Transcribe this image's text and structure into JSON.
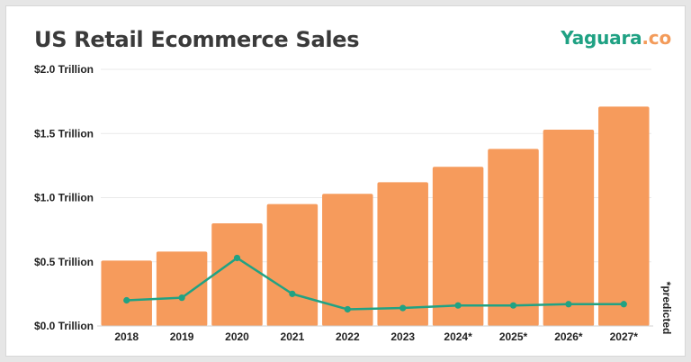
{
  "header": {
    "title": "US Retail Ecommerce Sales",
    "brand_name": "Yaguara",
    "brand_tld": ".co"
  },
  "colors": {
    "bar": "#f69b5c",
    "line": "#21a283",
    "grid": "#e9e9e9",
    "text": "#222222",
    "brand_green": "#1fa183",
    "brand_orange": "#f39b5a"
  },
  "chart_data": {
    "type": "bar",
    "title": "US Retail Ecommerce Sales",
    "categories": [
      "2018",
      "2019",
      "2020",
      "2021",
      "2022",
      "2023",
      "2024*",
      "2025*",
      "2026*",
      "2027*"
    ],
    "ylim": [
      0,
      2.0
    ],
    "yticks": [
      0,
      0.5,
      1.0,
      1.5,
      2.0
    ],
    "ytick_labels": [
      "$0.0 Trillion",
      "$0.5 Trillion",
      "$1.0 Trillion",
      "$1.5 Trillion",
      "$2.0 Trillion"
    ],
    "grid": true,
    "series": [
      {
        "type": "bar",
        "values": [
          0.51,
          0.58,
          0.8,
          0.95,
          1.03,
          1.12,
          1.24,
          1.38,
          1.53,
          1.71
        ]
      },
      {
        "type": "line",
        "values": [
          0.2,
          0.22,
          0.53,
          0.25,
          0.13,
          0.14,
          0.16,
          0.16,
          0.17,
          0.17
        ]
      }
    ],
    "annotation": "*predicted"
  }
}
